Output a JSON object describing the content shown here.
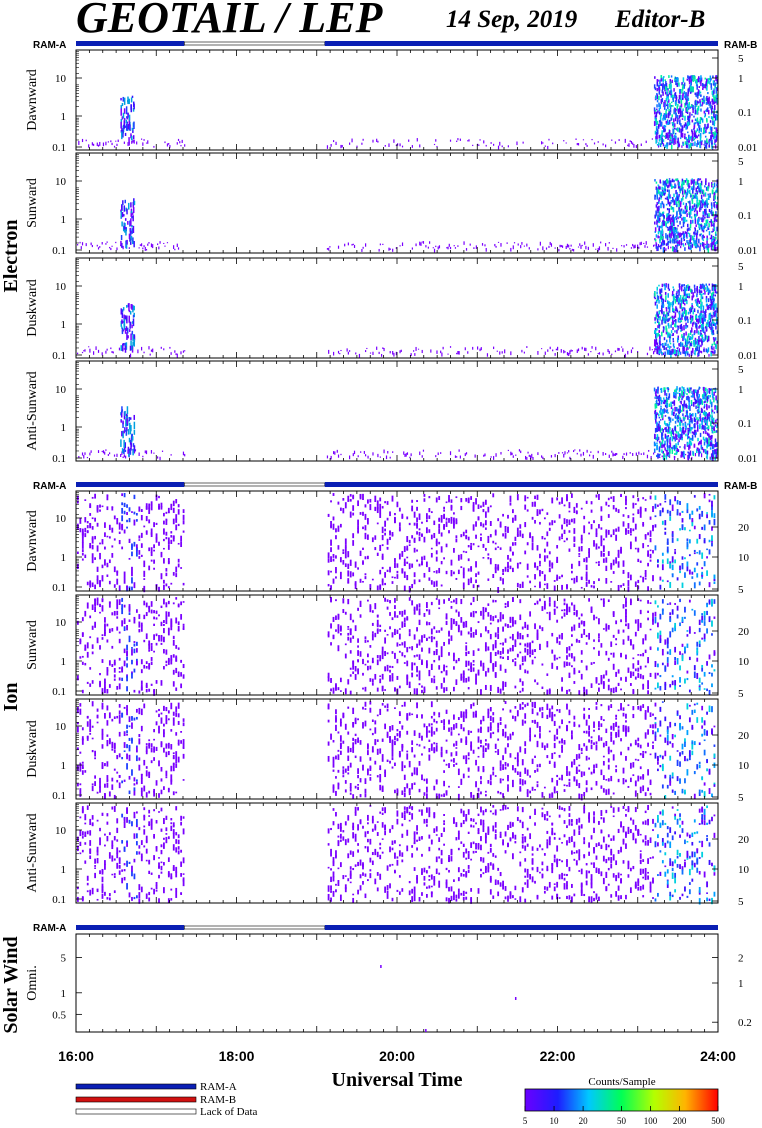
{
  "header": {
    "title": "GEOTAIL / LEP",
    "date": "14 Sep, 2019",
    "editor": "Editor-B"
  },
  "labels": {
    "ram_a": "RAM-A",
    "ram_b": "RAM-B",
    "electron": "Electron",
    "ion": "Ion",
    "solar_wind": "Solar Wind",
    "xlabel": "Universal Time",
    "cbar_title": "Counts/Sample"
  },
  "legend": {
    "items": [
      {
        "label": "RAM-A",
        "color": "#0a1fb4"
      },
      {
        "label": "RAM-B",
        "color": "#d01010"
      },
      {
        "label": "Lack of Data",
        "color": "#ffffff"
      }
    ]
  },
  "colors": {
    "ram_a": "#0a1fb4",
    "sparse": "#7a00ff"
  },
  "chart_data": {
    "type": "heatmap",
    "x_axis": {
      "label": "Universal Time",
      "range_hours": [
        16,
        24
      ],
      "tick_labels": [
        "16:00",
        "18:00",
        "20:00",
        "22:00",
        "24:00"
      ]
    },
    "ram_status": [
      {
        "mode": "RAM-A",
        "from": 16.0,
        "to": 17.35
      },
      {
        "mode": "Lack of Data",
        "from": 17.35,
        "to": 19.1
      },
      {
        "mode": "RAM-A",
        "from": 19.1,
        "to": 24.0
      }
    ],
    "data_gap": [
      17.35,
      19.1
    ],
    "electron_panels": [
      {
        "name": "Dawnward",
        "left_ticks": [
          "10",
          "1",
          "0.1"
        ],
        "right_ticks": [
          "5",
          "1",
          "0.1",
          "0.01"
        ]
      },
      {
        "name": "Sunward",
        "left_ticks": [
          "10",
          "1",
          "0.1"
        ],
        "right_ticks": [
          "5",
          "1",
          "0.1",
          "0.01"
        ]
      },
      {
        "name": "Duskward",
        "left_ticks": [
          "10",
          "1",
          "0.1"
        ],
        "right_ticks": [
          "5",
          "1",
          "0.1",
          "0.01"
        ]
      },
      {
        "name": "Anti-Sunward",
        "left_ticks": [
          "10",
          "1",
          "0.1"
        ],
        "right_ticks": [
          "5",
          "1",
          "0.1",
          "0.01"
        ]
      }
    ],
    "ion_panels": [
      {
        "name": "Dawnward",
        "left_ticks": [
          "10",
          "1",
          "0.1"
        ],
        "right_ticks": [
          "20",
          "10",
          "5"
        ]
      },
      {
        "name": "Sunward",
        "left_ticks": [
          "10",
          "1",
          "0.1"
        ],
        "right_ticks": [
          "20",
          "10",
          "5"
        ]
      },
      {
        "name": "Duskward",
        "left_ticks": [
          "10",
          "1",
          "0.1"
        ],
        "right_ticks": [
          "20",
          "10",
          "5"
        ]
      },
      {
        "name": "Anti-Sunward",
        "left_ticks": [
          "10",
          "1",
          "0.1"
        ],
        "right_ticks": [
          "20",
          "10",
          "5"
        ]
      }
    ],
    "solar_wind_panel": {
      "name": "Omni.",
      "left_ticks": [
        "5",
        "1",
        "0.5"
      ],
      "right_ticks": [
        "2",
        "1",
        "0.2"
      ]
    },
    "colorbar": {
      "title": "Counts/Sample",
      "tick_labels": [
        "5",
        "10",
        "20",
        "50",
        "100",
        "200",
        "500"
      ],
      "scale": "log"
    }
  }
}
